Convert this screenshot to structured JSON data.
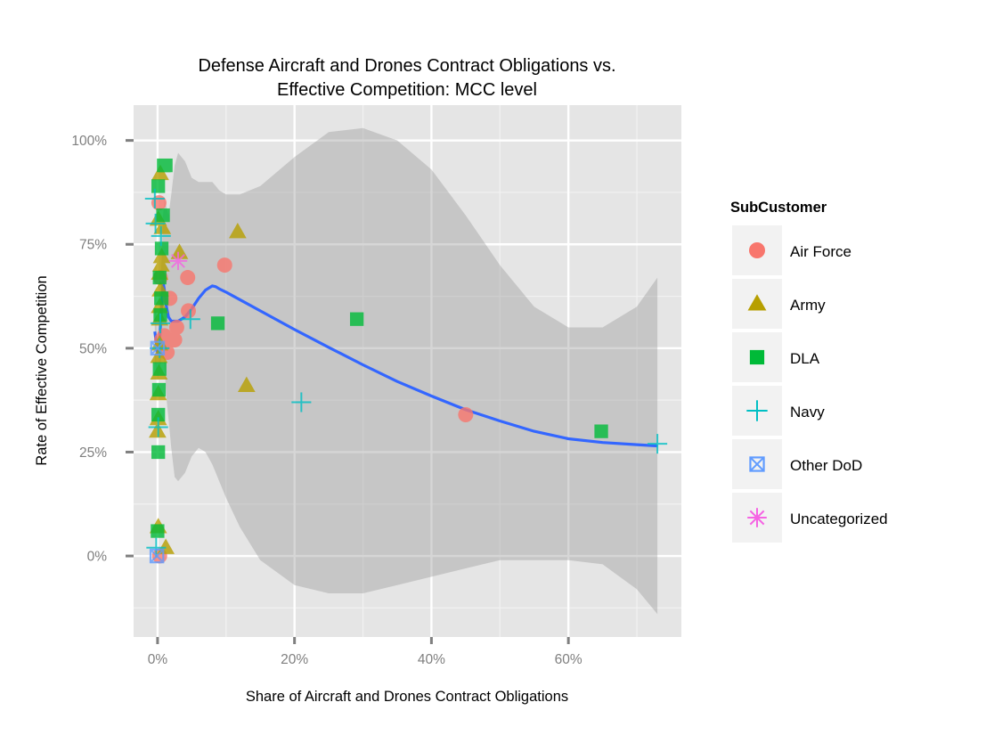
{
  "chart_data": {
    "type": "scatter",
    "title": "Defense Aircraft and Drones Contract Obligations vs.\nEffective Competition: MCC level",
    "xlabel": "Share of Aircraft and Drones Contract Obligations",
    "ylabel": "Rate of Effective Competition",
    "xlim": [
      -0.035,
      0.765
    ],
    "ylim": [
      -0.195,
      1.085
    ],
    "x_ticks": [
      {
        "value": 0.0,
        "label": "0%"
      },
      {
        "value": 0.2,
        "label": "20%"
      },
      {
        "value": 0.4,
        "label": "40%"
      },
      {
        "value": 0.6,
        "label": "60%"
      }
    ],
    "y_ticks": [
      {
        "value": 0.0,
        "label": "0%"
      },
      {
        "value": 0.25,
        "label": "25%"
      },
      {
        "value": 0.5,
        "label": "50%"
      },
      {
        "value": 0.75,
        "label": "75%"
      },
      {
        "value": 1.0,
        "label": "100%"
      }
    ],
    "grid": true,
    "legend": {
      "title": "SubCustomer",
      "placement": "right"
    },
    "series": [
      {
        "name": "Air Force",
        "color": "#F8766D",
        "shape": "circle",
        "x": [
          0.002,
          0.004,
          0.006,
          0.01,
          0.014,
          0.018,
          0.022,
          0.025,
          0.028,
          0.044,
          0.045,
          0.098,
          0.45,
          0.003
        ],
        "y": [
          0.85,
          0.67,
          0.52,
          0.53,
          0.49,
          0.62,
          0.52,
          0.52,
          0.55,
          0.67,
          0.59,
          0.7,
          0.34,
          0.0
        ]
      },
      {
        "name": "Army",
        "color": "#B79F00",
        "shape": "triangle",
        "x": [
          0.0,
          0.001,
          0.001,
          0.002,
          0.002,
          0.003,
          0.003,
          0.004,
          0.005,
          0.006,
          0.007,
          0.001,
          0.004,
          0.003,
          0.001,
          0.012,
          0.032,
          0.117,
          0.13,
          0.003
        ],
        "y": [
          0.3,
          0.33,
          0.39,
          0.44,
          0.48,
          0.57,
          0.6,
          0.64,
          0.7,
          0.72,
          0.79,
          0.81,
          0.92,
          0.51,
          0.07,
          0.02,
          0.73,
          0.78,
          0.41,
          0.68
        ]
      },
      {
        "name": "DLA",
        "color": "#00BA38",
        "shape": "square",
        "x": [
          0.0,
          0.001,
          0.002,
          0.003,
          0.004,
          0.005,
          0.006,
          0.008,
          0.009,
          0.012,
          0.001,
          0.003,
          0.006,
          0.088,
          0.291,
          0.648,
          0.001
        ],
        "y": [
          0.06,
          0.34,
          0.4,
          0.45,
          0.58,
          0.62,
          0.74,
          0.82,
          0.94,
          0.94,
          0.89,
          0.67,
          0.62,
          0.56,
          0.57,
          0.3,
          0.25
        ]
      },
      {
        "name": "Navy",
        "color": "#00BFC4",
        "shape": "plus",
        "x": [
          -0.004,
          -0.003,
          -0.002,
          0.001,
          0.003,
          0.004,
          0.005,
          0.048,
          0.21,
          0.73
        ],
        "y": [
          0.86,
          0.8,
          0.02,
          0.31,
          0.5,
          0.56,
          0.77,
          0.57,
          0.37,
          0.27
        ]
      },
      {
        "name": "Other DoD",
        "color": "#619CFF",
        "shape": "square-x",
        "x": [
          0.0,
          -0.001
        ],
        "y": [
          0.5,
          0.0
        ]
      },
      {
        "name": "Uncategorized",
        "color": "#F564E3",
        "shape": "asterisk",
        "x": [
          0.03
        ],
        "y": [
          0.71
        ]
      }
    ],
    "smooth": {
      "color": "#3366FF",
      "band_color": "#999999",
      "x": [
        -0.004,
        0.0,
        0.003,
        0.006,
        0.008,
        0.01,
        0.013,
        0.016,
        0.02,
        0.025,
        0.03,
        0.04,
        0.05,
        0.06,
        0.07,
        0.08,
        0.085,
        0.09,
        0.1,
        0.12,
        0.15,
        0.2,
        0.25,
        0.3,
        0.35,
        0.4,
        0.45,
        0.5,
        0.55,
        0.6,
        0.65,
        0.7,
        0.73
      ],
      "y": [
        0.54,
        0.49,
        0.52,
        0.6,
        0.66,
        0.64,
        0.6,
        0.575,
        0.565,
        0.565,
        0.565,
        0.575,
        0.595,
        0.62,
        0.64,
        0.65,
        0.648,
        0.643,
        0.635,
        0.617,
        0.59,
        0.545,
        0.502,
        0.46,
        0.42,
        0.385,
        0.352,
        0.325,
        0.3,
        0.282,
        0.273,
        0.268,
        0.265
      ],
      "upper": [
        0.61,
        0.56,
        0.6,
        0.72,
        0.82,
        0.86,
        0.84,
        0.82,
        0.87,
        0.94,
        0.97,
        0.95,
        0.91,
        0.9,
        0.9,
        0.9,
        0.89,
        0.88,
        0.87,
        0.87,
        0.89,
        0.96,
        1.02,
        1.03,
        1.0,
        0.93,
        0.82,
        0.7,
        0.6,
        0.55,
        0.55,
        0.6,
        0.67
      ],
      "lower": [
        0.47,
        0.42,
        0.44,
        0.48,
        0.5,
        0.46,
        0.38,
        0.33,
        0.26,
        0.19,
        0.18,
        0.2,
        0.24,
        0.26,
        0.25,
        0.22,
        0.2,
        0.18,
        0.14,
        0.07,
        -0.01,
        -0.07,
        -0.09,
        -0.09,
        -0.07,
        -0.05,
        -0.03,
        -0.01,
        -0.01,
        -0.01,
        -0.02,
        -0.08,
        -0.14
      ]
    }
  }
}
